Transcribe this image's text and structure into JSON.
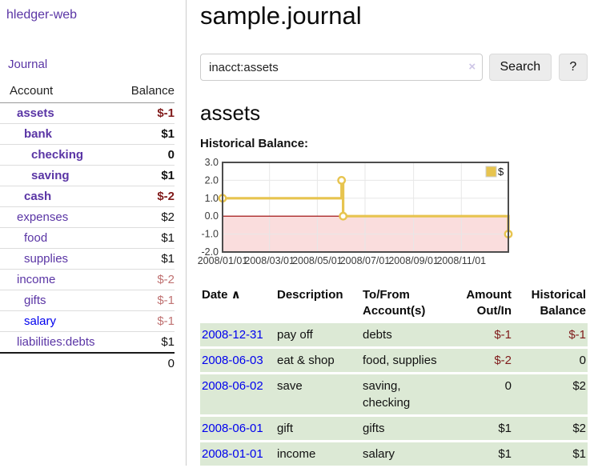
{
  "app": {
    "brand": "hledger-web",
    "nav_journal": "Journal"
  },
  "sidebar": {
    "table_headers": {
      "account": "Account",
      "balance": "Balance"
    },
    "accounts": [
      {
        "name": "assets",
        "depth": 0,
        "bold": true,
        "balance": "$-1",
        "balance_style": "neg-strong",
        "link_color": "purple"
      },
      {
        "name": "bank",
        "depth": 1,
        "bold": true,
        "balance": "$1",
        "balance_style": "pos-strong",
        "link_color": "purple"
      },
      {
        "name": "checking",
        "depth": 2,
        "bold": true,
        "balance": "0",
        "balance_style": "pos-strong",
        "link_color": "purple"
      },
      {
        "name": "saving",
        "depth": 2,
        "bold": true,
        "balance": "$1",
        "balance_style": "pos-strong",
        "link_color": "purple"
      },
      {
        "name": "cash",
        "depth": 1,
        "bold": true,
        "balance": "$-2",
        "balance_style": "neg-strong",
        "link_color": "purple"
      },
      {
        "name": "expenses",
        "depth": 0,
        "bold": false,
        "balance": "$2",
        "balance_style": "pos",
        "link_color": "purple"
      },
      {
        "name": "food",
        "depth": 1,
        "bold": false,
        "balance": "$1",
        "balance_style": "pos",
        "link_color": "purple"
      },
      {
        "name": "supplies",
        "depth": 1,
        "bold": false,
        "balance": "$1",
        "balance_style": "pos",
        "link_color": "purple"
      },
      {
        "name": "income",
        "depth": 0,
        "bold": false,
        "balance": "$-2",
        "balance_style": "neg",
        "link_color": "purple"
      },
      {
        "name": "gifts",
        "depth": 1,
        "bold": false,
        "balance": "$-1",
        "balance_style": "neg",
        "link_color": "purple"
      },
      {
        "name": "salary",
        "depth": 1,
        "bold": false,
        "balance": "$-1",
        "balance_style": "neg",
        "link_color": "blue"
      },
      {
        "name": "liabilities:debts",
        "depth": 0,
        "bold": false,
        "balance": "$1",
        "balance_style": "pos",
        "link_color": "purple"
      }
    ],
    "total": "0"
  },
  "header": {
    "title": "sample.journal"
  },
  "search": {
    "value": "inacct:assets",
    "clear_icon": "×",
    "button_label": "Search",
    "help_label": "?"
  },
  "account_page": {
    "heading": "assets",
    "chart_label": "Historical Balance:"
  },
  "chart_data": {
    "type": "line",
    "title": "Historical Balance:",
    "series": [
      {
        "name": "$",
        "step": true,
        "color": "#e7c44f",
        "points": [
          [
            "2008-01-01",
            1
          ],
          [
            "2008-06-01",
            2
          ],
          [
            "2008-06-03",
            0
          ],
          [
            "2008-12-31",
            -1
          ]
        ]
      }
    ],
    "xlim": [
      "2008-01-01",
      "2008-12-31"
    ],
    "ylim": [
      -2,
      3
    ],
    "y_ticks": [
      "3.0",
      "2.0",
      "1.0",
      "0.0",
      "-1.0",
      "-2.0"
    ],
    "x_ticks": [
      "2008/01/01",
      "2008/03/01",
      "2008/05/01",
      "2008/07/01",
      "2008/09/01",
      "2008/11/01"
    ],
    "grid": true,
    "zero_line_color": "#990000",
    "negative_region_color": "#fadddd",
    "legend": {
      "label": "$",
      "position": "top-right"
    }
  },
  "register": {
    "headers": [
      {
        "label": "Date",
        "sort_icon": "∧",
        "align": "left"
      },
      {
        "label": "Description",
        "align": "left"
      },
      {
        "label": "To/From Account(s)",
        "align": "left"
      },
      {
        "label": "Amount Out/In",
        "align": "right"
      },
      {
        "label": "Historical Balance",
        "align": "right"
      }
    ],
    "rows": [
      {
        "date": "2008-12-31",
        "description": "pay off",
        "accounts": "debts",
        "amount": "$-1",
        "amount_neg": true,
        "balance": "$-1",
        "balance_neg": true
      },
      {
        "date": "2008-06-03",
        "description": "eat & shop",
        "accounts": "food, supplies",
        "amount": "$-2",
        "amount_neg": true,
        "balance": "0",
        "balance_neg": false
      },
      {
        "date": "2008-06-02",
        "description": "save",
        "accounts": "saving, checking",
        "amount": "0",
        "amount_neg": false,
        "balance": "$2",
        "balance_neg": false
      },
      {
        "date": "2008-06-01",
        "description": "gift",
        "accounts": "gifts",
        "amount": "$1",
        "amount_neg": false,
        "balance": "$2",
        "balance_neg": false
      },
      {
        "date": "2008-01-01",
        "description": "income",
        "accounts": "salary",
        "amount": "$1",
        "amount_neg": false,
        "balance": "$1",
        "balance_neg": false
      }
    ]
  }
}
